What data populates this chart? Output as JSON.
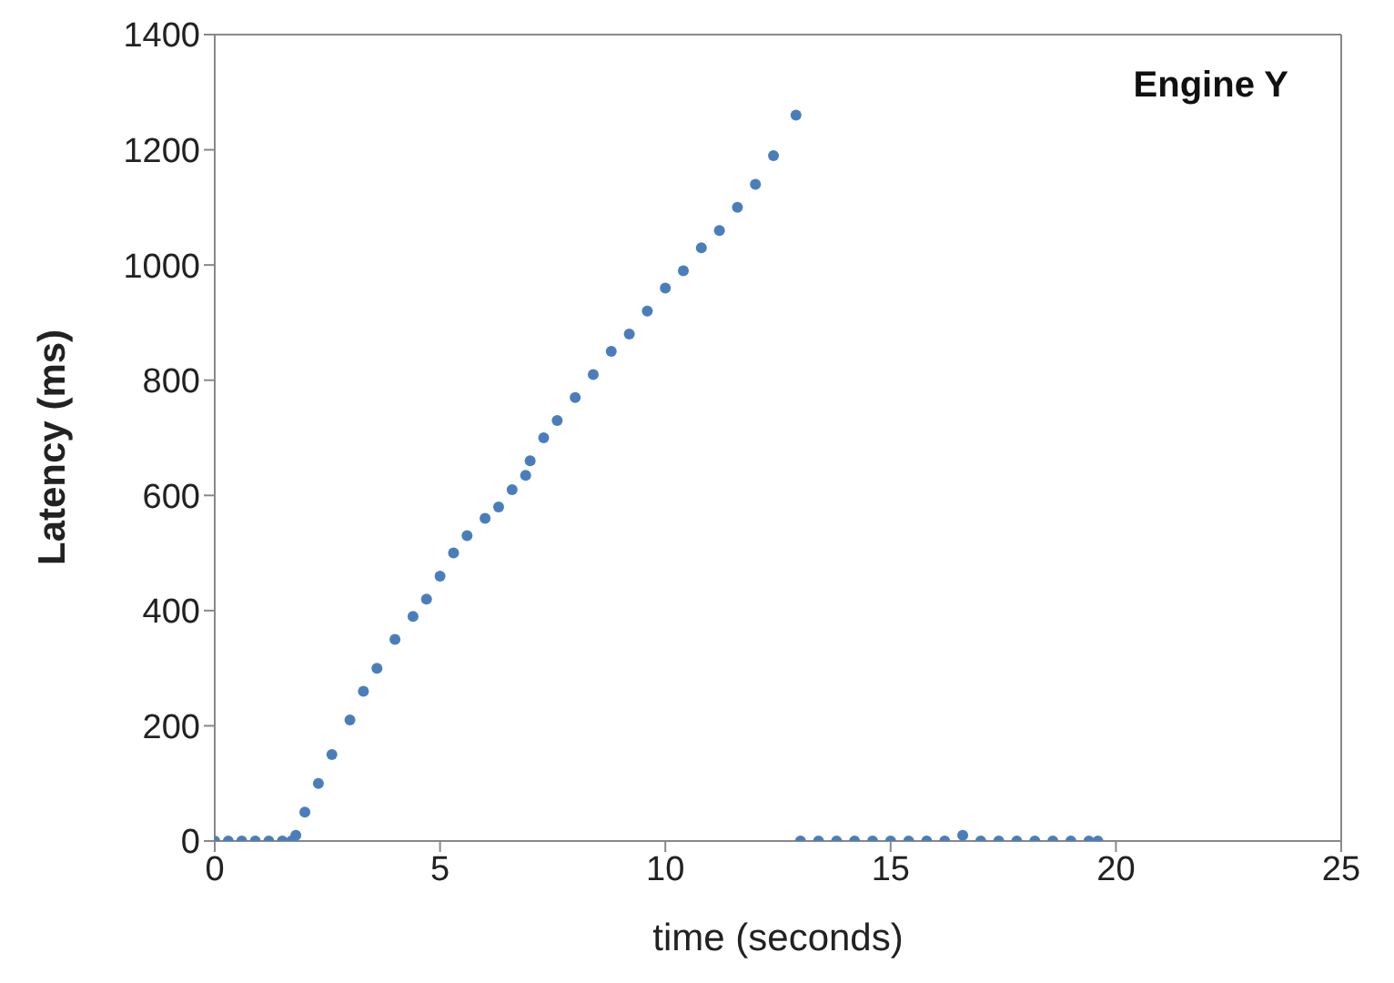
{
  "chart_data": {
    "type": "scatter",
    "title": "Engine Y",
    "xlabel": "time (seconds)",
    "ylabel": "Latency (ms)",
    "xlim": [
      0,
      25
    ],
    "xticks": [
      0,
      5,
      10,
      15,
      20,
      25
    ],
    "ylim": [
      0,
      1400
    ],
    "yticks": [
      0,
      200,
      400,
      600,
      800,
      1000,
      1200,
      1400
    ],
    "legend": false,
    "marker": "circle",
    "series": [
      {
        "color": "#4a7ebb",
        "x": [
          0,
          0.3,
          0.6,
          0.9,
          1.2,
          1.5,
          1.7,
          1.8,
          2.0,
          2.3,
          2.6,
          3.0,
          3.3,
          3.6,
          4.0,
          4.4,
          4.7,
          5.0,
          5.3,
          5.6,
          6.0,
          6.3,
          6.6,
          6.9,
          7.0,
          7.3,
          7.6,
          8.0,
          8.4,
          8.8,
          9.2,
          9.6,
          10.0,
          10.4,
          10.8,
          11.2,
          11.6,
          12.0,
          12.4,
          12.9
        ],
        "values": [
          0,
          0,
          0,
          0,
          0,
          0,
          0,
          10,
          50,
          100,
          150,
          210,
          260,
          300,
          350,
          390,
          420,
          460,
          500,
          530,
          560,
          580,
          610,
          635,
          660,
          700,
          730,
          770,
          810,
          850,
          880,
          920,
          960,
          990,
          1030,
          1060,
          1100,
          1140,
          1190,
          1260
        ]
      },
      {
        "color": "#4a7ebb",
        "x": [
          13.0,
          13.4,
          13.8,
          14.2,
          14.6,
          15.0,
          15.4,
          15.8,
          16.2,
          16.6,
          17.0,
          17.4,
          17.8,
          18.2,
          18.6,
          19.0,
          19.4,
          19.6
        ],
        "values": [
          0,
          0,
          0,
          0,
          0,
          0,
          0,
          0,
          0,
          10,
          0,
          0,
          0,
          0,
          0,
          0,
          0,
          0
        ]
      }
    ]
  }
}
